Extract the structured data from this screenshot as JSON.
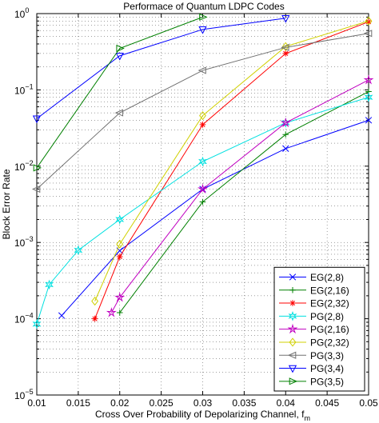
{
  "chart_data": {
    "type": "line",
    "title": "Performace of Quantum LDPC Codes",
    "xlabel": "Cross Over Probability of Depolarizing Channel, f",
    "xlabel_sub": "m",
    "ylabel": "Block Error Rate",
    "xlim": [
      0.01,
      0.05
    ],
    "ylim": [
      1e-05,
      1
    ],
    "yscale": "log",
    "grid": true,
    "legend_position": "bottom-right",
    "xticks": [
      0.01,
      0.015,
      0.02,
      0.025,
      0.03,
      0.035,
      0.04,
      0.045,
      0.05
    ],
    "xtick_labels": [
      "0.01",
      "0.015",
      "0.02",
      "0.025",
      "0.03",
      "0.035",
      "0.04",
      "0.045",
      "0.05"
    ],
    "ytick_exponents": [
      -5,
      -4,
      -3,
      -2,
      -1,
      0
    ],
    "ytick_base": "10",
    "series": [
      {
        "name": "EG(2,8)",
        "color": "#0000ff",
        "marker": "x",
        "x": [
          0.013,
          0.02,
          0.03,
          0.04,
          0.05
        ],
        "y": [
          0.00011,
          0.00078,
          0.005,
          0.017,
          0.04
        ]
      },
      {
        "name": "EG(2,16)",
        "color": "#008000",
        "marker": "plus",
        "x": [
          0.02,
          0.03,
          0.04,
          0.05
        ],
        "y": [
          0.00012,
          0.0034,
          0.026,
          0.095
        ]
      },
      {
        "name": "EG(2,32)",
        "color": "#ff0000",
        "marker": "asterisk",
        "x": [
          0.017,
          0.02,
          0.03,
          0.04,
          0.05
        ],
        "y": [
          0.0001,
          0.00065,
          0.035,
          0.3,
          0.78
        ]
      },
      {
        "name": "PG(2,8)",
        "color": "#00e0e0",
        "marker": "hexagram",
        "x": [
          0.01,
          0.0115,
          0.015,
          0.02,
          0.03,
          0.04,
          0.05
        ],
        "y": [
          8.5e-05,
          0.00028,
          0.00079,
          0.002,
          0.0115,
          0.037,
          0.08
        ]
      },
      {
        "name": "PG(2,16)",
        "color": "#c000c0",
        "marker": "pentagram",
        "x": [
          0.019,
          0.02,
          0.03,
          0.04,
          0.05
        ],
        "y": [
          0.00012,
          0.00019,
          0.005,
          0.037,
          0.135
        ]
      },
      {
        "name": "PG(2,32)",
        "color": "#d0d000",
        "marker": "diamond",
        "x": [
          0.017,
          0.02,
          0.03,
          0.04,
          0.05
        ],
        "y": [
          0.00017,
          0.00095,
          0.046,
          0.37,
          0.8
        ]
      },
      {
        "name": "PG(3,3)",
        "color": "#707070",
        "marker": "triangle-left",
        "x": [
          0.01,
          0.02,
          0.03,
          0.04,
          0.05
        ],
        "y": [
          0.005,
          0.05,
          0.18,
          0.36,
          0.55
        ]
      },
      {
        "name": "PG(3,4)",
        "color": "#0000ff",
        "marker": "triangle-down",
        "x": [
          0.01,
          0.02,
          0.03,
          0.04
        ],
        "y": [
          0.042,
          0.28,
          0.62,
          0.87
        ]
      },
      {
        "name": "PG(3,5)",
        "color": "#008000",
        "marker": "triangle-right",
        "x": [
          0.01,
          0.02,
          0.03
        ],
        "y": [
          0.0095,
          0.35,
          0.9
        ]
      }
    ]
  }
}
